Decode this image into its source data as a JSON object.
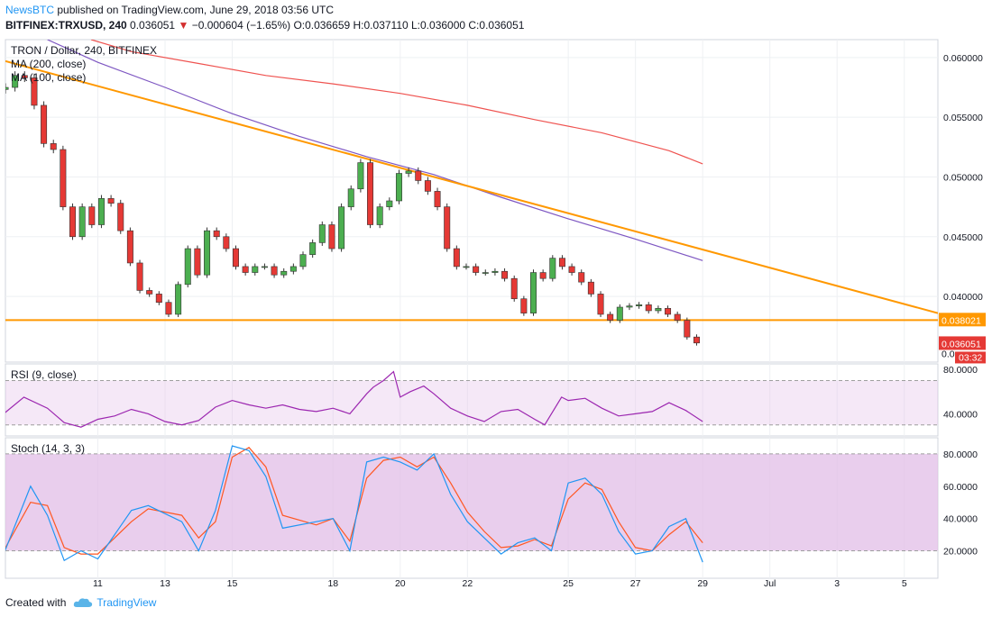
{
  "header": {
    "publisher": "NewsBTC",
    "published_text": "published on TradingView.com, June 29, 2018 03:56 UTC",
    "symbol": "BITFINEX:TRXUSD, 240",
    "last": "0.036051",
    "change": "−0.000604 (−1.65%)",
    "ohlc": "O:0.036659 H:0.037110 L:0.036000 C:0.036051"
  },
  "legend": {
    "main": "TRON / Dollar, 240, BITFINEX",
    "ma200": "MA (200, close)",
    "ma100": "MA (100, close)"
  },
  "footer": {
    "created_with": "Created with",
    "brand": "TradingView"
  },
  "colors": {
    "up": "#4caf50",
    "down": "#e53935",
    "trend": "#ff9800",
    "ma200": "#ef5350",
    "ma100": "#7e57c2",
    "rsi": "#9c27b0",
    "stoch_k": "#2196f3",
    "stoch_d": "#ff5722",
    "band": "#e1bee7"
  },
  "chart_data": [
    {
      "type": "line",
      "name": "price",
      "y_ticks": [
        "0.060000",
        "0.055000",
        "0.050000",
        "0.045000",
        "0.040000"
      ],
      "ylim": [
        0.0345,
        0.0615
      ],
      "x_tick_labels": [
        "11",
        "13",
        "15",
        "18",
        "20",
        "22",
        "25",
        "27",
        "29",
        "Jul",
        "3",
        "5"
      ],
      "x_tick_days": [
        11,
        13,
        15,
        18,
        20,
        22,
        25,
        27,
        29,
        31,
        33,
        35
      ],
      "xlim": [
        8.25,
        36.0
      ],
      "support_level": 0.038021,
      "support_label": "0.038021",
      "last_price_label": "0.036051",
      "countdown_label": "03:32",
      "truncated_label": "0.0",
      "trendline": {
        "from": [
          8.25,
          0.0597
        ],
        "to": [
          36.0,
          0.0386
        ]
      },
      "ma200": {
        "x": [
          10.8,
          12,
          14,
          16,
          18,
          20,
          22,
          24,
          26,
          28,
          29
        ],
        "y": [
          0.0615,
          0.0605,
          0.0595,
          0.0585,
          0.0578,
          0.057,
          0.056,
          0.0548,
          0.0537,
          0.0522,
          0.0511
        ]
      },
      "ma100": {
        "x": [
          9.5,
          11,
          13,
          15,
          17,
          19,
          21,
          23,
          25,
          27,
          29
        ],
        "y": [
          0.0615,
          0.0596,
          0.0575,
          0.0553,
          0.0534,
          0.0517,
          0.0502,
          0.0483,
          0.0465,
          0.0448,
          0.043
        ]
      },
      "close": [
        0.0575,
        0.0585,
        0.0583,
        0.056,
        0.0528,
        0.0523,
        0.0475,
        0.045,
        0.0475,
        0.046,
        0.0482,
        0.0478,
        0.0455,
        0.0428,
        0.0405,
        0.0402,
        0.0395,
        0.0385,
        0.041,
        0.044,
        0.0418,
        0.0455,
        0.045,
        0.044,
        0.0425,
        0.042,
        0.0425,
        0.0425,
        0.0418,
        0.0421,
        0.0425,
        0.0435,
        0.0445,
        0.046,
        0.044,
        0.0475,
        0.049,
        0.0512,
        0.046,
        0.0475,
        0.048,
        0.0503,
        0.0505,
        0.0497,
        0.0488,
        0.0475,
        0.044,
        0.0425,
        0.0425,
        0.042,
        0.042,
        0.0421,
        0.0415,
        0.0398,
        0.0386,
        0.042,
        0.0415,
        0.0432,
        0.0425,
        0.042,
        0.0412,
        0.0402,
        0.0385,
        0.038,
        0.0391,
        0.0392,
        0.0393,
        0.0388,
        0.039,
        0.0385,
        0.038,
        0.0366,
        0.0361
      ],
      "x_start": 8.25,
      "x_step": 0.2857
    },
    {
      "type": "line",
      "name": "RSI",
      "legend": "RSI (9, close)",
      "y_ticks": [
        "80.0000",
        "40.0000"
      ],
      "ylim": [
        20,
        85
      ],
      "band": [
        30,
        70
      ],
      "series": [
        {
          "name": "RSI",
          "x": [
            8.2,
            8.8,
            9.5,
            10,
            10.5,
            11,
            11.5,
            12,
            12.5,
            13,
            13.5,
            14,
            14.5,
            15,
            15.5,
            16,
            16.5,
            17,
            17.5,
            18,
            18.5,
            19,
            19.2,
            19.5,
            19.8,
            20,
            20.3,
            20.7,
            21,
            21.5,
            22,
            22.5,
            23,
            23.5,
            24,
            24.3,
            24.8,
            25,
            25.5,
            26,
            26.5,
            27,
            27.5,
            28,
            28.5,
            29
          ],
          "y": [
            40,
            55,
            45,
            32,
            28,
            35,
            38,
            44,
            40,
            33,
            30,
            34,
            46,
            52,
            48,
            45,
            48,
            44,
            42,
            45,
            40,
            58,
            64,
            70,
            78,
            55,
            60,
            65,
            58,
            45,
            38,
            33,
            42,
            44,
            35,
            30,
            55,
            52,
            54,
            45,
            38,
            40,
            42,
            50,
            43,
            33
          ]
        }
      ],
      "x_start": 8.25
    },
    {
      "type": "line",
      "name": "Stoch",
      "legend": "Stoch (14, 3, 3)",
      "y_ticks": [
        "80.0000",
        "60.0000",
        "40.0000",
        "20.0000"
      ],
      "ylim": [
        3,
        90
      ],
      "band": [
        20,
        80
      ],
      "series": [
        {
          "name": "%K",
          "x": [
            8.2,
            9,
            9.5,
            10,
            10.5,
            11,
            12,
            12.5,
            13.5,
            14,
            14.5,
            15,
            15.5,
            16,
            16.5,
            17.5,
            18,
            18.5,
            19,
            19.5,
            20,
            20.5,
            21,
            21.5,
            22,
            22.5,
            23,
            23.5,
            24,
            24.5,
            25,
            25.5,
            26,
            26.5,
            27,
            27.5,
            28,
            28.5,
            29
          ],
          "y": [
            18,
            60,
            42,
            14,
            20,
            15,
            45,
            48,
            38,
            20,
            45,
            85,
            82,
            66,
            34,
            38,
            40,
            20,
            75,
            78,
            75,
            70,
            80,
            55,
            38,
            28,
            18,
            25,
            28,
            20,
            62,
            65,
            55,
            32,
            18,
            20,
            35,
            40,
            13
          ]
        },
        {
          "name": "%D",
          "x": [
            8.2,
            9,
            9.5,
            10,
            10.5,
            11,
            12,
            12.5,
            13.5,
            14,
            14.5,
            15,
            15.5,
            16,
            16.5,
            17.5,
            18,
            18.5,
            19,
            19.5,
            20,
            20.5,
            21,
            21.5,
            22,
            22.5,
            23,
            23.5,
            24,
            24.5,
            25,
            25.5,
            26,
            26.5,
            27,
            27.5,
            28,
            28.5,
            29
          ],
          "y": [
            20,
            50,
            48,
            22,
            18,
            18,
            38,
            46,
            42,
            28,
            38,
            78,
            84,
            72,
            42,
            36,
            40,
            26,
            65,
            76,
            78,
            72,
            78,
            62,
            44,
            32,
            22,
            23,
            27,
            23,
            52,
            62,
            58,
            38,
            22,
            20,
            30,
            38,
            25
          ]
        }
      ],
      "x_start": 8.25
    }
  ]
}
